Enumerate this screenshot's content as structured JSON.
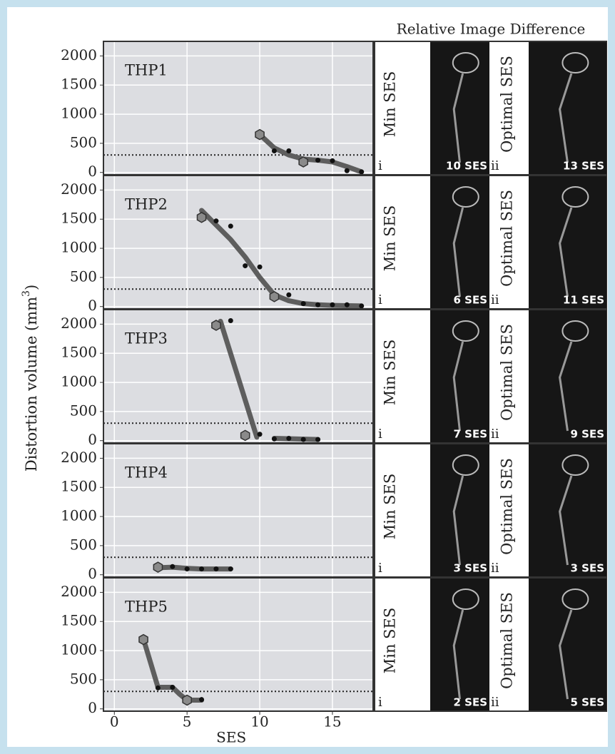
{
  "header": "Relative Image Difference",
  "ylabel": "Distortion volume (mm",
  "ylabel_sup": "3",
  "ylabel_end": ")",
  "chart_data": [
    {
      "type": "line",
      "title": "THP1",
      "xlim": [
        -0.75,
        17.8
      ],
      "ylim": [
        -40,
        2250
      ],
      "xticks": [
        0,
        5,
        10,
        15
      ],
      "yticks": [
        0,
        500,
        1000,
        1500,
        2000
      ],
      "grid": true,
      "hline": 300,
      "series": [
        {
          "marker": "line",
          "color": "#5e5e5e",
          "x": [
            10,
            11,
            12,
            13,
            14,
            15,
            16,
            17
          ],
          "values": [
            650,
            420,
            300,
            230,
            210,
            180,
            100,
            10
          ]
        },
        {
          "marker": "dot",
          "color": "#111111",
          "x": [
            11,
            12,
            14,
            15,
            16,
            17
          ],
          "values": [
            370,
            370,
            210,
            200,
            30,
            10
          ]
        },
        {
          "marker": "hexagon",
          "color": "#8a8a8a",
          "x": [
            10,
            13
          ],
          "values": [
            650,
            180
          ]
        }
      ]
    },
    {
      "type": "line",
      "title": "THP2",
      "xlim": [
        -0.75,
        17.8
      ],
      "ylim": [
        -40,
        2250
      ],
      "xticks": [
        0,
        5,
        10,
        15
      ],
      "yticks": [
        0,
        500,
        1000,
        1500,
        2000
      ],
      "grid": true,
      "hline": 300,
      "series": [
        {
          "marker": "line",
          "color": "#5e5e5e",
          "x": [
            6,
            7,
            8,
            9,
            10,
            11,
            12,
            13,
            14,
            15,
            16,
            17
          ],
          "values": [
            1650,
            1400,
            1150,
            850,
            500,
            200,
            100,
            50,
            30,
            20,
            15,
            10
          ]
        },
        {
          "marker": "dot",
          "color": "#111111",
          "x": [
            7,
            8,
            9,
            10,
            12,
            13,
            14,
            15,
            16,
            17
          ],
          "values": [
            1470,
            1380,
            700,
            680,
            200,
            50,
            30,
            30,
            30,
            10
          ]
        },
        {
          "marker": "hexagon",
          "color": "#8a8a8a",
          "x": [
            6,
            11
          ],
          "values": [
            1530,
            170
          ]
        }
      ]
    },
    {
      "type": "line",
      "title": "THP3",
      "xlim": [
        -0.75,
        17.8
      ],
      "ylim": [
        -40,
        2250
      ],
      "xticks": [
        0,
        5,
        10,
        15
      ],
      "yticks": [
        0,
        500,
        1000,
        1500,
        2000
      ],
      "grid": true,
      "hline": 300,
      "series": [
        {
          "marker": "line",
          "color": "#5e5e5e",
          "x": [
            7.3,
            9.8,
            10.5,
            11,
            14
          ],
          "values": [
            2050,
            60,
            null,
            40,
            20
          ]
        },
        {
          "marker": "dot",
          "color": "#111111",
          "x": [
            8,
            10,
            11,
            12,
            13,
            14
          ],
          "values": [
            2060,
            110,
            30,
            40,
            20,
            20
          ]
        },
        {
          "marker": "hexagon",
          "color": "#8a8a8a",
          "x": [
            7,
            9
          ],
          "values": [
            1980,
            90
          ]
        }
      ]
    },
    {
      "type": "line",
      "title": "THP4",
      "xlim": [
        -0.75,
        17.8
      ],
      "ylim": [
        -40,
        2250
      ],
      "xticks": [
        0,
        5,
        10,
        15
      ],
      "yticks": [
        0,
        500,
        1000,
        1500,
        2000
      ],
      "grid": true,
      "hline": 300,
      "series": [
        {
          "marker": "line",
          "color": "#5e5e5e",
          "x": [
            3,
            4,
            5,
            6,
            7,
            8
          ],
          "values": [
            120,
            130,
            110,
            100,
            100,
            100
          ]
        },
        {
          "marker": "dot",
          "color": "#111111",
          "x": [
            4,
            5,
            6,
            7,
            8
          ],
          "values": [
            140,
            100,
            100,
            100,
            100
          ]
        },
        {
          "marker": "hexagon",
          "color": "#8a8a8a",
          "x": [
            3
          ],
          "values": [
            130
          ]
        }
      ]
    },
    {
      "type": "line",
      "title": "THP5",
      "xlim": [
        -0.75,
        17.8
      ],
      "ylim": [
        -40,
        2250
      ],
      "xticks": [
        0,
        5,
        10,
        15
      ],
      "yticks": [
        0,
        500,
        1000,
        1500,
        2000
      ],
      "grid": true,
      "hline": 300,
      "xlabel": "SES",
      "series": [
        {
          "marker": "line",
          "color": "#5e5e5e",
          "x": [
            2,
            3,
            4,
            4.5,
            5,
            6
          ],
          "values": [
            1200,
            370,
            370,
            250,
            150,
            150
          ]
        },
        {
          "marker": "dot",
          "color": "#111111",
          "x": [
            3,
            4,
            6
          ],
          "values": [
            360,
            370,
            160
          ]
        },
        {
          "marker": "hexagon",
          "color": "#8a8a8a",
          "x": [
            2,
            5
          ],
          "values": [
            1190,
            150
          ]
        }
      ]
    }
  ],
  "images": [
    {
      "min_label": "Min SES",
      "min_index": "i",
      "min_ses": "10 SES",
      "opt_label": "Optimal SES",
      "opt_index": "ii",
      "opt_ses": "13 SES"
    },
    {
      "min_label": "Min SES",
      "min_index": "i",
      "min_ses": "6 SES",
      "opt_label": "Optimal SES",
      "opt_index": "ii",
      "opt_ses": "11 SES"
    },
    {
      "min_label": "Min SES",
      "min_index": "i",
      "min_ses": "7 SES",
      "opt_label": "Optimal SES",
      "opt_index": "ii",
      "opt_ses": "9 SES"
    },
    {
      "min_label": "Min SES",
      "min_index": "i",
      "min_ses": "3 SES",
      "opt_label": "Optimal SES",
      "opt_index": "ii",
      "opt_ses": "3 SES"
    },
    {
      "min_label": "Min SES",
      "min_index": "i",
      "min_ses": "2 SES",
      "opt_label": "Optimal SES",
      "opt_index": "ii",
      "opt_ses": "5 SES"
    }
  ]
}
